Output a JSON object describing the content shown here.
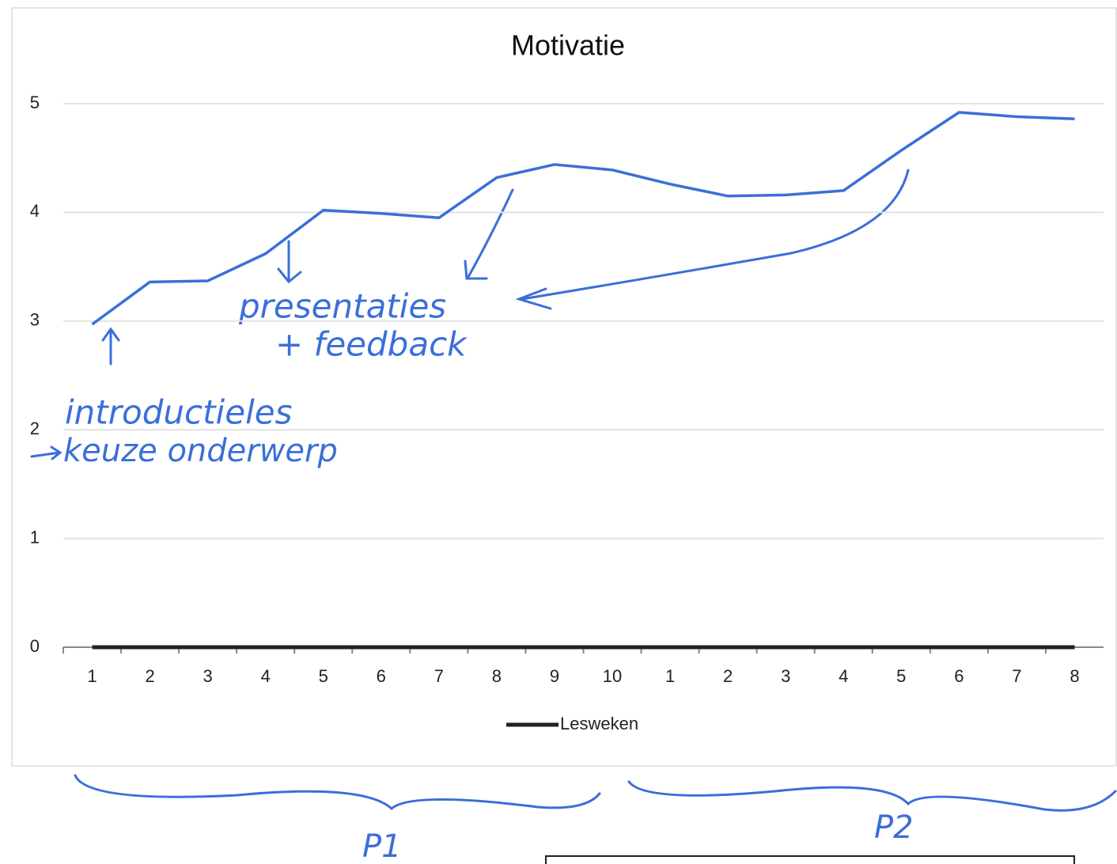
{
  "chart_data": {
    "type": "line",
    "title": "Motivatie",
    "categories": [
      "1",
      "2",
      "3",
      "4",
      "5",
      "6",
      "7",
      "8",
      "9",
      "10",
      "1",
      "2",
      "3",
      "4",
      "5",
      "6",
      "7",
      "8"
    ],
    "series": [
      {
        "name": "Lesweken",
        "color": "#222222",
        "values": [
          0,
          0,
          0,
          0,
          0,
          0,
          0,
          0,
          0,
          0,
          0,
          0,
          0,
          0,
          0,
          0,
          0,
          0
        ]
      },
      {
        "color": "#3a6fd8",
        "values": [
          2.97,
          3.36,
          3.37,
          3.62,
          4.02,
          3.99,
          3.95,
          4.32,
          4.44,
          4.39,
          4.26,
          4.15,
          4.16,
          4.2,
          4.57,
          4.92,
          4.88,
          4.86
        ]
      }
    ],
    "ylim": [
      0,
      5
    ],
    "yticks": [
      0,
      1,
      2,
      3,
      4,
      5
    ],
    "grid": true,
    "legend": "bottom",
    "annotations": [
      "presentaties",
      "+ feedback",
      "introductieles",
      "keuze onderwerp",
      "P1",
      "P2"
    ]
  }
}
